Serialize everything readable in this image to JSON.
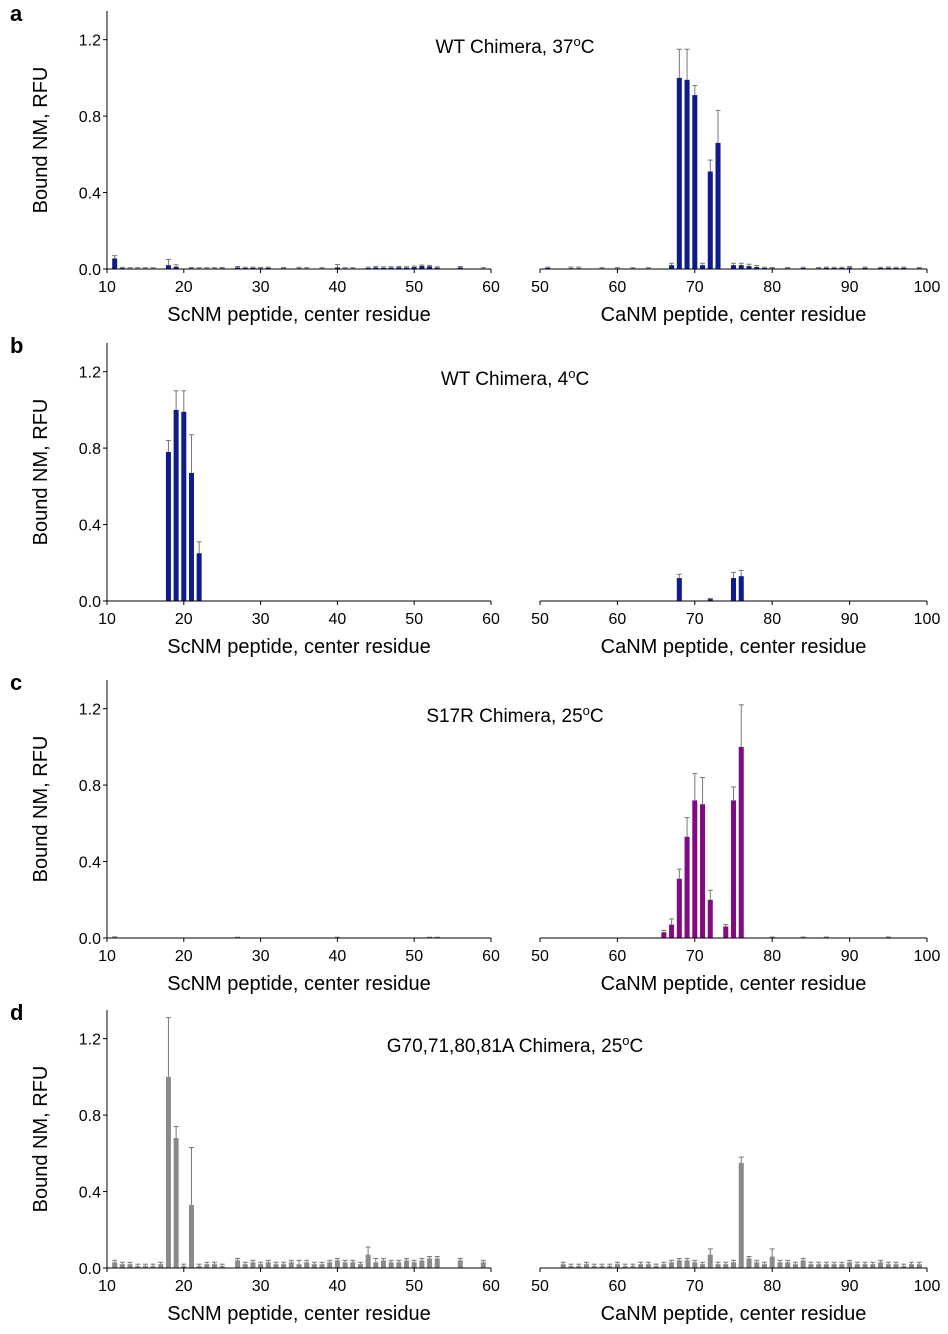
{
  "chart_data": [
    {
      "type": "bar",
      "panel": "a",
      "title": [
        "WT Chimera, 37",
        "o",
        "C"
      ],
      "ylabel": "Bound NM, RFU",
      "color": "#0d1b8c",
      "ylim": [
        0,
        1.35
      ],
      "yticks": [
        {
          "value": 0,
          "label": "0.0"
        },
        0.4,
        0.8,
        1.2
      ],
      "subplots": [
        {
          "xlabel": "ScNM peptide, center residue",
          "xlim": [
            10,
            60
          ],
          "xticks": [
            10,
            20,
            30,
            40,
            50,
            60
          ],
          "x": [
            11,
            12,
            13,
            14,
            15,
            16,
            18,
            19,
            21,
            22,
            23,
            24,
            25,
            27,
            28,
            29,
            30,
            31,
            33,
            35,
            36,
            38,
            40,
            41,
            42,
            44,
            45,
            46,
            47,
            48,
            49,
            50,
            51,
            52,
            53,
            56,
            59
          ],
          "values": [
            0.055,
            0.005,
            0.003,
            0.003,
            0.003,
            0.003,
            0.02,
            0.012,
            0.004,
            0.003,
            0.003,
            0.003,
            0.004,
            0.008,
            0.005,
            0.006,
            0.004,
            0.006,
            0.004,
            0.004,
            0.003,
            0.003,
            0.008,
            0.003,
            0.003,
            0.005,
            0.008,
            0.006,
            0.007,
            0.009,
            0.007,
            0.01,
            0.016,
            0.014,
            0.007,
            0.008,
            0.003
          ],
          "errors": [
            0.015,
            0.004,
            0.004,
            0.004,
            0.004,
            0.004,
            0.03,
            0.01,
            0.004,
            0.004,
            0.004,
            0.004,
            0.004,
            0.005,
            0.004,
            0.004,
            0.004,
            0.004,
            0.004,
            0.005,
            0.004,
            0.004,
            0.015,
            0.004,
            0.004,
            0.005,
            0.005,
            0.005,
            0.005,
            0.005,
            0.005,
            0.005,
            0.005,
            0.005,
            0.005,
            0.005,
            0.004
          ]
        },
        {
          "xlabel": "CaNM peptide, center residue",
          "xlim": [
            50,
            100
          ],
          "xticks": [
            50,
            60,
            70,
            80,
            90,
            100
          ],
          "x": [
            51,
            54,
            55,
            58,
            60,
            62,
            64,
            67,
            68,
            69,
            70,
            71,
            72,
            73,
            75,
            76,
            77,
            78,
            79,
            80,
            82,
            84,
            86,
            87,
            88,
            89,
            90,
            92,
            94,
            95,
            96,
            97,
            99
          ],
          "values": [
            0.006,
            0.004,
            0.004,
            0.003,
            0.003,
            0.003,
            0.003,
            0.02,
            1.0,
            0.99,
            0.91,
            0.02,
            0.51,
            0.66,
            0.02,
            0.02,
            0.015,
            0.01,
            0.005,
            0.004,
            0.004,
            0.005,
            0.004,
            0.006,
            0.005,
            0.005,
            0.008,
            0.006,
            0.005,
            0.006,
            0.005,
            0.006,
            0.004
          ],
          "errors": [
            0.004,
            0.006,
            0.006,
            0.004,
            0.004,
            0.004,
            0.004,
            0.01,
            0.15,
            0.16,
            0.05,
            0.01,
            0.06,
            0.17,
            0.01,
            0.01,
            0.01,
            0.008,
            0.004,
            0.004,
            0.004,
            0.004,
            0.004,
            0.004,
            0.004,
            0.004,
            0.005,
            0.004,
            0.004,
            0.005,
            0.004,
            0.004,
            0.004
          ]
        }
      ]
    },
    {
      "type": "bar",
      "panel": "b",
      "title": [
        "WT Chimera, 4",
        "o",
        "C"
      ],
      "ylabel": "Bound NM, RFU",
      "color": "#0d1b8c",
      "ylim": [
        0,
        1.35
      ],
      "yticks": [
        {
          "value": 0,
          "label": "0.0"
        },
        0.4,
        0.8,
        1.2
      ],
      "subplots": [
        {
          "xlabel": "ScNM peptide, center residue",
          "xlim": [
            10,
            60
          ],
          "xticks": [
            10,
            20,
            30,
            40,
            50,
            60
          ],
          "x": [
            18,
            19,
            20,
            21,
            22
          ],
          "values": [
            0.78,
            1.0,
            0.99,
            0.67,
            0.25
          ],
          "errors": [
            0.06,
            0.1,
            0.11,
            0.2,
            0.06
          ]
        },
        {
          "xlabel": "CaNM peptide, center residue",
          "xlim": [
            50,
            100
          ],
          "xticks": [
            50,
            60,
            70,
            80,
            90,
            100
          ],
          "x": [
            68,
            72,
            75,
            76
          ],
          "values": [
            0.12,
            0.01,
            0.12,
            0.13
          ],
          "errors": [
            0.02,
            0.003,
            0.03,
            0.03
          ]
        }
      ]
    },
    {
      "type": "bar",
      "panel": "c",
      "title": [
        "S17R Chimera, 25",
        "o",
        "C"
      ],
      "ylabel": "Bound NM, RFU",
      "color": "#820a82",
      "ylim": [
        0,
        1.35
      ],
      "yticks": [
        {
          "value": 0,
          "label": "0.0"
        },
        0.4,
        0.8,
        1.2
      ],
      "subplots": [
        {
          "xlabel": "ScNM peptide, center residue",
          "xlim": [
            10,
            60
          ],
          "xticks": [
            10,
            20,
            30,
            40,
            50,
            60
          ],
          "x": [
            11,
            27,
            40,
            52,
            53
          ],
          "values": [
            0.004,
            0.002,
            0.002,
            0.002,
            0.002
          ],
          "errors": [
            0.002,
            0.002,
            0.002,
            0.002,
            0.002
          ]
        },
        {
          "xlabel": "CaNM peptide, center residue",
          "xlim": [
            50,
            100
          ],
          "xticks": [
            50,
            60,
            70,
            80,
            90,
            100
          ],
          "x": [
            66,
            67,
            68,
            69,
            70,
            71,
            72,
            74,
            75,
            76,
            80,
            84,
            87,
            95
          ],
          "values": [
            0.03,
            0.07,
            0.31,
            0.53,
            0.72,
            0.7,
            0.2,
            0.06,
            0.72,
            1.0,
            0.003,
            0.003,
            0.003,
            0.003
          ],
          "errors": [
            0.01,
            0.03,
            0.05,
            0.1,
            0.14,
            0.14,
            0.05,
            0.01,
            0.07,
            0.22,
            0.002,
            0.002,
            0.002,
            0.002
          ]
        }
      ]
    },
    {
      "type": "bar",
      "panel": "d",
      "title": [
        "G70,71,80,81A Chimera, 25",
        "o",
        "C"
      ],
      "ylabel": "Bound NM, RFU",
      "color": "#8a8a8a",
      "ylim": [
        0,
        1.35
      ],
      "yticks": [
        {
          "value": 0,
          "label": "0.0"
        },
        0.4,
        0.8,
        1.2
      ],
      "subplots": [
        {
          "xlabel": "ScNM peptide, center residue",
          "xlim": [
            10,
            60
          ],
          "xticks": [
            10,
            20,
            30,
            40,
            50,
            60
          ],
          "x": [
            11,
            12,
            13,
            14,
            15,
            16,
            17,
            18,
            19,
            20,
            21,
            22,
            23,
            24,
            25,
            27,
            28,
            29,
            30,
            31,
            32,
            33,
            34,
            35,
            36,
            37,
            38,
            39,
            40,
            41,
            42,
            43,
            44,
            45,
            46,
            47,
            48,
            49,
            50,
            51,
            52,
            53,
            56,
            59
          ],
          "values": [
            0.03,
            0.02,
            0.02,
            0.01,
            0.01,
            0.01,
            0.02,
            1.0,
            0.68,
            0.01,
            0.33,
            0.01,
            0.02,
            0.02,
            0.01,
            0.04,
            0.02,
            0.03,
            0.02,
            0.03,
            0.02,
            0.02,
            0.03,
            0.02,
            0.03,
            0.02,
            0.02,
            0.03,
            0.04,
            0.03,
            0.03,
            0.02,
            0.07,
            0.03,
            0.04,
            0.03,
            0.03,
            0.04,
            0.03,
            0.04,
            0.05,
            0.05,
            0.04,
            0.03
          ],
          "errors": [
            0.01,
            0.01,
            0.01,
            0.01,
            0.01,
            0.01,
            0.01,
            0.31,
            0.06,
            0.01,
            0.3,
            0.01,
            0.01,
            0.01,
            0.01,
            0.01,
            0.01,
            0.01,
            0.01,
            0.01,
            0.01,
            0.01,
            0.01,
            0.02,
            0.01,
            0.01,
            0.01,
            0.01,
            0.01,
            0.01,
            0.01,
            0.01,
            0.04,
            0.02,
            0.01,
            0.01,
            0.01,
            0.01,
            0.01,
            0.01,
            0.01,
            0.01,
            0.01,
            0.01
          ]
        },
        {
          "xlabel": "CaNM peptide, center residue",
          "xlim": [
            50,
            100
          ],
          "xticks": [
            50,
            60,
            70,
            80,
            90,
            100
          ],
          "x": [
            53,
            54,
            55,
            56,
            57,
            58,
            59,
            60,
            61,
            62,
            63,
            64,
            65,
            66,
            67,
            68,
            69,
            70,
            71,
            72,
            73,
            74,
            75,
            76,
            77,
            78,
            79,
            80,
            81,
            82,
            83,
            84,
            85,
            86,
            87,
            88,
            89,
            90,
            91,
            92,
            93,
            94,
            95,
            96,
            97,
            98,
            99
          ],
          "values": [
            0.02,
            0.01,
            0.01,
            0.02,
            0.01,
            0.01,
            0.01,
            0.02,
            0.01,
            0.01,
            0.02,
            0.02,
            0.01,
            0.02,
            0.03,
            0.04,
            0.04,
            0.03,
            0.02,
            0.07,
            0.02,
            0.02,
            0.03,
            0.55,
            0.05,
            0.03,
            0.02,
            0.06,
            0.03,
            0.03,
            0.02,
            0.04,
            0.02,
            0.02,
            0.02,
            0.02,
            0.02,
            0.03,
            0.02,
            0.02,
            0.02,
            0.03,
            0.02,
            0.02,
            0.01,
            0.02,
            0.02
          ],
          "errors": [
            0.01,
            0.01,
            0.01,
            0.01,
            0.01,
            0.01,
            0.01,
            0.01,
            0.01,
            0.01,
            0.01,
            0.01,
            0.01,
            0.01,
            0.01,
            0.01,
            0.01,
            0.01,
            0.01,
            0.03,
            0.01,
            0.01,
            0.01,
            0.03,
            0.01,
            0.01,
            0.01,
            0.04,
            0.01,
            0.01,
            0.01,
            0.01,
            0.01,
            0.01,
            0.01,
            0.01,
            0.01,
            0.01,
            0.01,
            0.01,
            0.01,
            0.01,
            0.01,
            0.01,
            0.01,
            0.01,
            0.01
          ]
        }
      ]
    }
  ]
}
